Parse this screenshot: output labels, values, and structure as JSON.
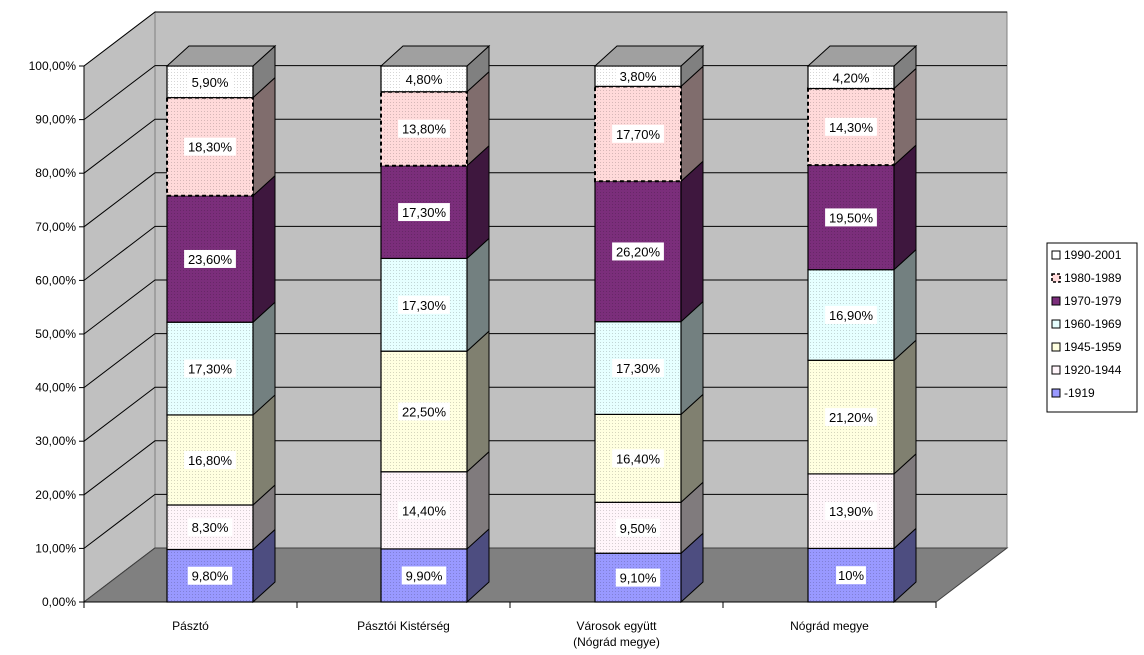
{
  "chart_data": {
    "type": "bar",
    "stacked": true,
    "three_d": true,
    "title": "",
    "xlabel": "",
    "ylabel": "",
    "ylim": [
      0,
      100
    ],
    "y_tick_labels": [
      "0,00%",
      "10,00%",
      "20,00%",
      "30,00%",
      "40,00%",
      "50,00%",
      "60,00%",
      "70,00%",
      "80,00%",
      "90,00%",
      "100,00%"
    ],
    "grid": true,
    "legend_position": "right",
    "categories": [
      [
        "Pásztó"
      ],
      [
        "Pásztói Kistérség"
      ],
      [
        "Városok együtt",
        "(Nógrád megye)"
      ],
      [
        "Nógrád megye"
      ]
    ],
    "series": [
      {
        "name": "-1919",
        "color": "#9999ff",
        "values": [
          9.8,
          9.9,
          9.1,
          10.0
        ],
        "labels": [
          "9,80%",
          "9,90%",
          "9,10%",
          "10%"
        ]
      },
      {
        "name": "1920-1944",
        "color": "#fff5fa",
        "values": [
          8.3,
          14.4,
          9.5,
          13.9
        ],
        "labels": [
          "8,30%",
          "14,40%",
          "9,50%",
          "13,90%"
        ]
      },
      {
        "name": "1945-1959",
        "color": "#ffffe0",
        "values": [
          16.8,
          22.5,
          16.4,
          21.2
        ],
        "labels": [
          "16,80%",
          "22,50%",
          "16,40%",
          "21,20%"
        ]
      },
      {
        "name": "1960-1969",
        "color": "#e6ffff",
        "values": [
          17.3,
          17.3,
          17.3,
          16.9
        ],
        "labels": [
          "17,30%",
          "17,30%",
          "17,30%",
          "16,90%"
        ]
      },
      {
        "name": "1970-1979",
        "color": "#7b2e7b",
        "values": [
          23.6,
          17.3,
          26.2,
          19.5
        ],
        "labels": [
          "23,60%",
          "17,30%",
          "26,20%",
          "19,50%"
        ]
      },
      {
        "name": "1980-1989",
        "color": "#ffdada",
        "values": [
          18.3,
          13.8,
          17.7,
          14.3
        ],
        "labels": [
          "18,30%",
          "13,80%",
          "17,70%",
          "14,30%"
        ]
      },
      {
        "name": "1990-2001",
        "color": "#ffffff",
        "values": [
          5.9,
          4.8,
          3.8,
          4.2
        ],
        "labels": [
          "5,90%",
          "4,80%",
          "3,80%",
          "4,20%"
        ]
      }
    ]
  }
}
